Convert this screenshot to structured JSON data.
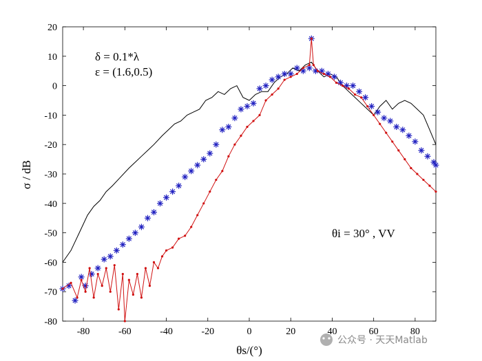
{
  "chart_data": {
    "type": "line",
    "xlabel": "θs/(°)",
    "ylabel": "σ / dB",
    "xlim": [
      -90,
      90
    ],
    "ylim": [
      -80,
      20
    ],
    "xticks": [
      -80,
      -60,
      -40,
      -20,
      0,
      20,
      40,
      60,
      80
    ],
    "yticks": [
      20,
      10,
      0,
      -10,
      -20,
      -30,
      -40,
      -50,
      -60,
      -70,
      -80
    ],
    "grid": false,
    "annotations": [
      "δ = 0.1*λ",
      "ε = (1.6,0.5)",
      "θi = 30° , VV"
    ],
    "series": [
      {
        "style": "black-line",
        "color": "#000000",
        "x": [
          -90,
          -86,
          -82,
          -78,
          -75,
          -72,
          -69,
          -66,
          -62,
          -58,
          -55,
          -52,
          -49,
          -46,
          -42,
          -39,
          -36,
          -33,
          -30,
          -27,
          -24,
          -21,
          -18,
          -15,
          -12,
          -9,
          -6,
          -3,
          0,
          3,
          6,
          9,
          12,
          15,
          18,
          21,
          24,
          27,
          30,
          33,
          36,
          39,
          42,
          45,
          48,
          51,
          54,
          57,
          60,
          63,
          66,
          69,
          72,
          75,
          78,
          81,
          84,
          87,
          90
        ],
        "y": [
          -60,
          -56,
          -50,
          -44,
          -41,
          -39,
          -36,
          -34,
          -31,
          -28,
          -26,
          -24,
          -22,
          -20,
          -17,
          -15,
          -13,
          -12,
          -10,
          -9,
          -8,
          -5,
          -4,
          -2,
          -3,
          -1,
          0,
          -4,
          -5,
          -3,
          -2,
          -2,
          1,
          3,
          4,
          6,
          5,
          7,
          8,
          5,
          3,
          4,
          3,
          0,
          -2,
          -4,
          -6,
          -8,
          -10,
          -7,
          -5,
          -8,
          -6,
          -5,
          -6,
          -8,
          -10,
          -15,
          -20
        ]
      },
      {
        "style": "blue-asterisk",
        "color": "#2020c0",
        "x": [
          -90,
          -87,
          -84,
          -81,
          -79,
          -76,
          -73,
          -70,
          -67,
          -64,
          -61,
          -58,
          -55,
          -52,
          -49,
          -46,
          -43,
          -40,
          -37,
          -34,
          -31,
          -28,
          -25,
          -22,
          -19,
          -16,
          -13,
          -10,
          -7,
          -4,
          -1,
          2,
          5,
          8,
          11,
          14,
          17,
          20,
          23,
          26,
          29,
          30,
          32,
          35,
          38,
          41,
          44,
          47,
          50,
          53,
          56,
          59,
          62,
          65,
          68,
          71,
          74,
          77,
          80,
          83,
          86,
          89,
          90
        ],
        "y": [
          -69,
          -68,
          -73,
          -65,
          -68,
          -64,
          -62,
          -59,
          -58,
          -56,
          -54,
          -52,
          -50,
          -48,
          -45,
          -43,
          -40,
          -38,
          -36,
          -34,
          -31,
          -29,
          -27,
          -25,
          -23,
          -20,
          -15,
          -14,
          -11,
          -8,
          -7,
          -6,
          -1,
          0,
          2,
          3,
          4,
          4,
          6,
          5,
          6,
          16,
          5,
          5,
          4,
          3,
          1,
          0,
          0,
          -2,
          -4,
          -7,
          -9,
          -11,
          -12,
          -14,
          -15,
          -17,
          -19,
          -22,
          -24,
          -26,
          -27
        ]
      },
      {
        "style": "red-dotted-line",
        "color": "#d01010",
        "x": [
          -90,
          -86,
          -83,
          -81,
          -79,
          -77,
          -75,
          -73,
          -71,
          -69,
          -67,
          -65,
          -63,
          -61,
          -60,
          -58,
          -56,
          -54,
          -52,
          -50,
          -48,
          -46,
          -44,
          -42,
          -40,
          -37,
          -34,
          -31,
          -28,
          -25,
          -22,
          -19,
          -16,
          -13,
          -10,
          -7,
          -4,
          -1,
          2,
          5,
          8,
          11,
          14,
          17,
          20,
          23,
          26,
          29,
          30,
          31,
          33,
          36,
          39,
          42,
          45,
          48,
          51,
          54,
          57,
          60,
          63,
          66,
          69,
          72,
          75,
          78,
          81,
          84,
          87,
          90
        ],
        "y": [
          -69,
          -67,
          -72,
          -66,
          -70,
          -62,
          -72,
          -64,
          -68,
          -62,
          -70,
          -61,
          -76,
          -64,
          -80,
          -66,
          -71,
          -64,
          -72,
          -62,
          -68,
          -60,
          -62,
          -58,
          -56,
          -55,
          -52,
          -51,
          -48,
          -44,
          -40,
          -36,
          -32,
          -29,
          -24,
          -20,
          -17,
          -14,
          -12,
          -10,
          -5,
          -3,
          -1,
          2,
          3,
          4,
          6,
          7,
          16,
          7,
          5,
          4,
          3,
          1,
          0,
          -1,
          -3,
          -4,
          -7,
          -10,
          -13,
          -16,
          -19,
          -22,
          -25,
          -28,
          -30,
          -32,
          -34,
          -36
        ]
      }
    ]
  },
  "watermark": "公众号 · 天天Matlab"
}
